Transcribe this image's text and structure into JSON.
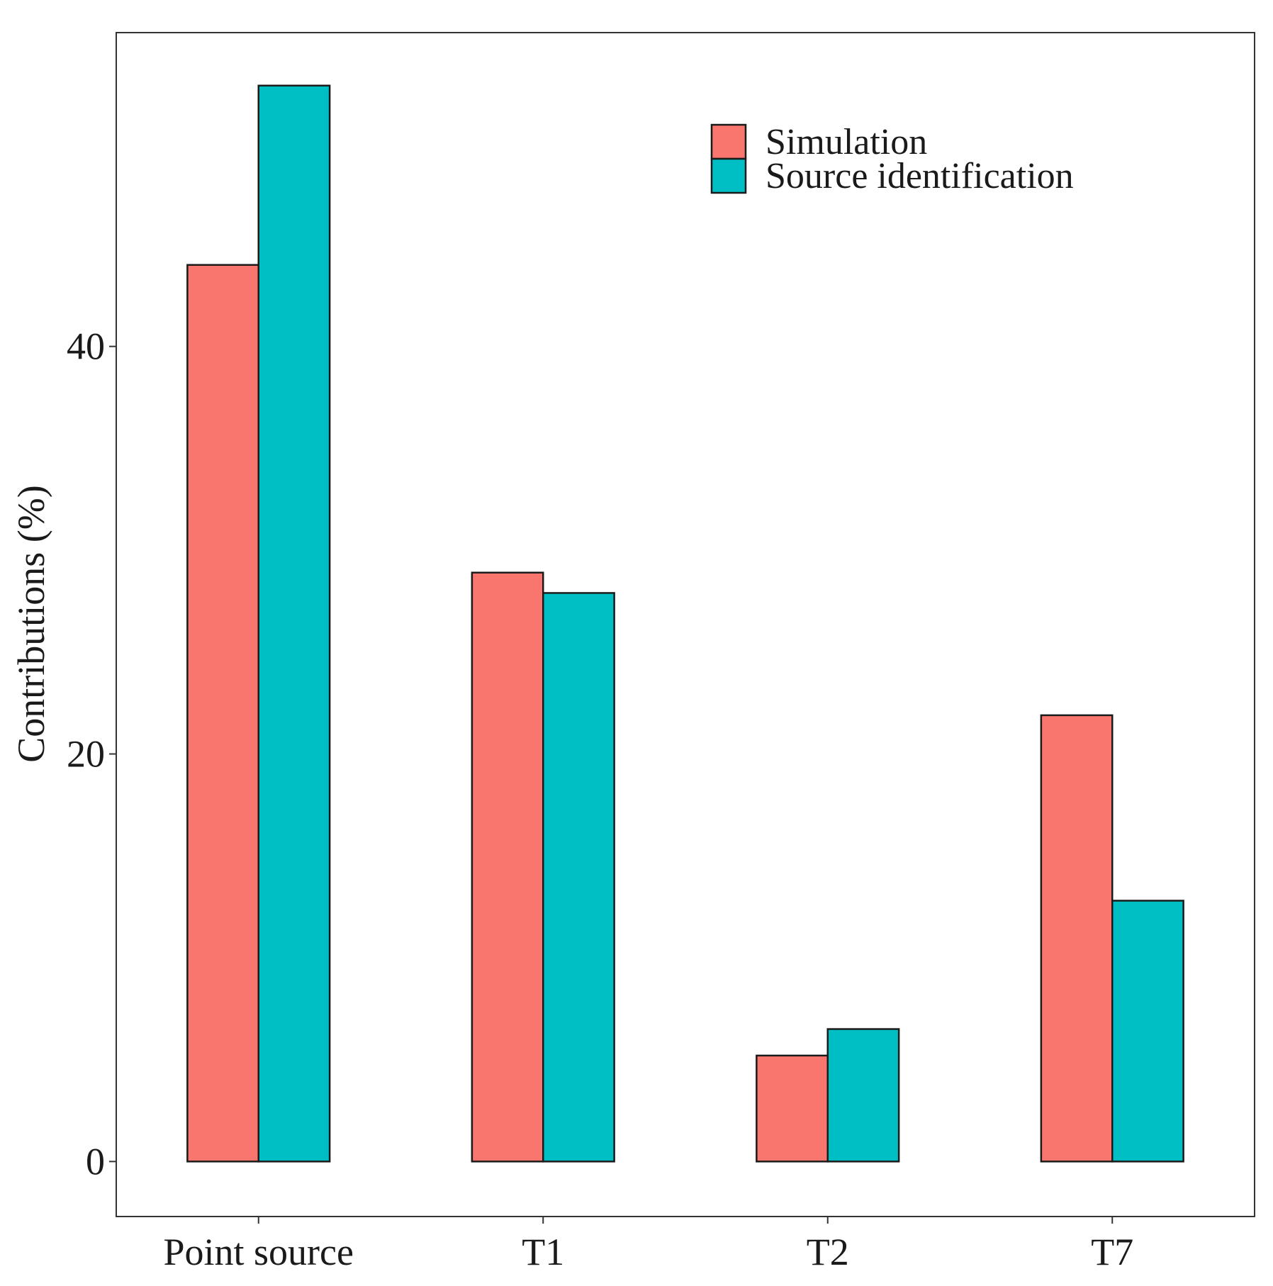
{
  "chart_data": {
    "type": "bar",
    "title": "",
    "xlabel": "",
    "ylabel": "Contributions (%)",
    "categories": [
      "Point source",
      "T1",
      "T2",
      "T7"
    ],
    "series": [
      {
        "name": "Simulation",
        "color": "#F8766D",
        "values": [
          44.0,
          28.9,
          5.2,
          21.9
        ]
      },
      {
        "name": "Source identification",
        "color": "#00BFC4",
        "values": [
          52.8,
          27.9,
          6.5,
          12.8
        ]
      }
    ],
    "ylim": [
      -2.7,
      55.4
    ],
    "yticks": [
      "0",
      "20",
      "40"
    ],
    "grid": false,
    "legend_position": "top-right"
  }
}
